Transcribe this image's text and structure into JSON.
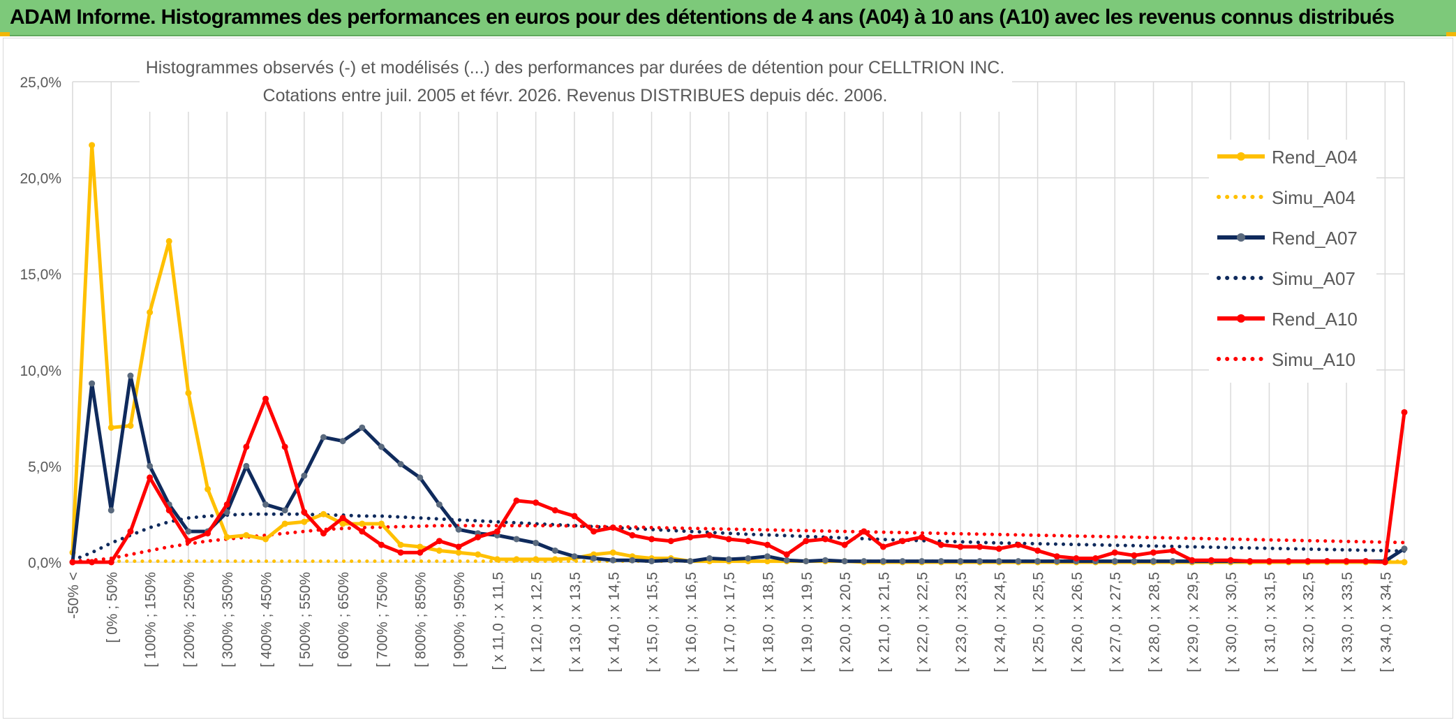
{
  "header": {
    "title": "ADAM Informe. Histogrammes des performances en euros pour des détentions de 4 ans (A04) à 10 ans (A10) avec les revenus connus distribués"
  },
  "colors": {
    "header_bg": "#7dc97a",
    "a04": "#ffc000",
    "a07": "#0f2a5c",
    "a07_marker": "#5a6a7e",
    "a10": "#ff0000",
    "grid": "#d9d9d9",
    "axis_text": "#595959"
  },
  "chart_data": {
    "type": "line",
    "title_line1": "Histogrammes observés (-) et modélisés (...) des performances par durées de détention pour CELLTRION INC.",
    "title_line2": "Cotations entre juil. 2005 et févr. 2026. Revenus DISTRIBUES depuis déc. 2006.",
    "ylim": [
      0,
      25
    ],
    "yticks": [
      "0,0%",
      "5,0%",
      "10,0%",
      "15,0%",
      "20,0%",
      "25,0%"
    ],
    "ytick_values": [
      0,
      5,
      10,
      15,
      20,
      25
    ],
    "n_categories": 70,
    "xtick_labels": [
      "-50% <",
      "[ 0% ; 50%",
      "[ 100% ; 150%",
      "[ 200% ; 250%",
      "[ 300% ; 350%",
      "[ 400% ; 450%",
      "[ 500% ; 550%",
      "[ 600% ; 650%",
      "[ 700% ; 750%",
      "[ 800% ; 850%",
      "[ 900% ; 950%",
      "[ x 11,0 ; x 11,5",
      "[ x 12,0 ; x 12,5",
      "[ x 13,0 ; x 13,5",
      "[ x 14,0 ; x 14,5",
      "[ x 15,0 ; x 15,5",
      "[ x 16,0 ; x 16,5",
      "[ x 17,0 ; x 17,5",
      "[ x 18,0 ; x 18,5",
      "[ x 19,0 ; x 19,5",
      "[ x 20,0 ; x 20,5",
      "[ x 21,0 ; x 21,5",
      "[ x 22,0 ; x 22,5",
      "[ x 23,0 ; x 23,5",
      "[ x 24,0 ; x 24,5",
      "[ x 25,0 ; x 25,5",
      "[ x 26,0 ; x 26,5",
      "[ x 27,0 ; x 27,5",
      "[ x 28,0 ; x 28,5",
      "[ x 29,0 ; x 29,5",
      "[ x 30,0 ; x 30,5",
      "[ x 31,0 ; x 31,5",
      "[ x 32,0 ; x 32,5",
      "[ x 33,0 ; x 33,5",
      "[ x 34,0 ; x 34,5"
    ],
    "xtick_every": 2,
    "series": [
      {
        "name": "Rend_A04",
        "style": "solid",
        "color": "#ffc000",
        "values": [
          0.5,
          21.7,
          7.0,
          7.1,
          13.0,
          16.7,
          8.8,
          3.8,
          1.3,
          1.4,
          1.2,
          2.0,
          2.1,
          2.5,
          2.0,
          2.0,
          2.0,
          0.9,
          0.8,
          0.6,
          0.5,
          0.4,
          0.15,
          0.15,
          0.15,
          0.15,
          0.2,
          0.4,
          0.5,
          0.3,
          0.2,
          0.2,
          0.05,
          0.05,
          0.05,
          0.05,
          0.05,
          0.05,
          0.05,
          0.05,
          0.05,
          0,
          0,
          0,
          0,
          0,
          0,
          0,
          0,
          0,
          0,
          0,
          0,
          0,
          0,
          0,
          0,
          0,
          0,
          0,
          0,
          0,
          0,
          0,
          0,
          0,
          0,
          0,
          0,
          0
        ]
      },
      {
        "name": "Simu_A04",
        "style": "dotted",
        "color": "#ffc000",
        "values": [
          0.05,
          0.05,
          0.05,
          0.05,
          0.05,
          0.05,
          0.05,
          0.05,
          0.05,
          0.05,
          0.05,
          0.05,
          0.05,
          0.05,
          0.05,
          0.05,
          0.05,
          0.05,
          0.05,
          0.05,
          0.05,
          0.05,
          0.05,
          0.05,
          0.05,
          0.05,
          0.05,
          0.05,
          0.05,
          0.05,
          0.05,
          0.05,
          0.05,
          0.05,
          0.05,
          0.05,
          0.05,
          0.05,
          0.05,
          0.05,
          0.05,
          0.05,
          0.05,
          0.05,
          0.05,
          0.05,
          0.05,
          0.05,
          0.05,
          0.05,
          0.05,
          0.05,
          0.05,
          0.05,
          0.05,
          0.05,
          0.05,
          0.05,
          0.05,
          0.05,
          0.05,
          0.05,
          0.05,
          0.05,
          0.05,
          0.05,
          0.05,
          0.05,
          0.05,
          0.05
        ]
      },
      {
        "name": "Rend_A07",
        "style": "solid",
        "color": "#0f2a5c",
        "values": [
          0,
          9.3,
          2.7,
          9.7,
          5.0,
          3.0,
          1.6,
          1.6,
          2.6,
          5.0,
          3.0,
          2.7,
          4.5,
          6.5,
          6.3,
          7.0,
          6.0,
          5.1,
          4.4,
          3.0,
          1.7,
          1.5,
          1.4,
          1.2,
          1.0,
          0.6,
          0.3,
          0.2,
          0.1,
          0.1,
          0.05,
          0.1,
          0.05,
          0.2,
          0.15,
          0.2,
          0.3,
          0.1,
          0.05,
          0.1,
          0.05,
          0.05,
          0.05,
          0.05,
          0.05,
          0.05,
          0.05,
          0.05,
          0.05,
          0.05,
          0.05,
          0.05,
          0.05,
          0.05,
          0.05,
          0.05,
          0.05,
          0.05,
          0.05,
          0.05,
          0.05,
          0.05,
          0.05,
          0.05,
          0.05,
          0.05,
          0.05,
          0.05,
          0.05,
          0.7
        ]
      },
      {
        "name": "Simu_A07",
        "style": "dotted",
        "color": "#0f2a5c",
        "values": [
          0.1,
          0.5,
          1.0,
          1.4,
          1.8,
          2.1,
          2.3,
          2.4,
          2.45,
          2.5,
          2.5,
          2.5,
          2.5,
          2.45,
          2.45,
          2.4,
          2.4,
          2.35,
          2.3,
          2.25,
          2.2,
          2.15,
          2.1,
          2.05,
          2.0,
          1.95,
          1.9,
          1.85,
          1.8,
          1.75,
          1.7,
          1.65,
          1.6,
          1.55,
          1.5,
          1.45,
          1.42,
          1.38,
          1.34,
          1.3,
          1.26,
          1.22,
          1.18,
          1.15,
          1.12,
          1.09,
          1.06,
          1.03,
          1.0,
          0.98,
          0.96,
          0.94,
          0.92,
          0.9,
          0.88,
          0.86,
          0.84,
          0.82,
          0.8,
          0.78,
          0.76,
          0.74,
          0.72,
          0.7,
          0.68,
          0.66,
          0.64,
          0.62,
          0.6,
          0.58
        ]
      },
      {
        "name": "Rend_A10",
        "style": "solid",
        "color": "#ff0000",
        "values": [
          0,
          0,
          0,
          1.6,
          4.4,
          2.7,
          1.1,
          1.5,
          3.0,
          6.0,
          8.5,
          6.0,
          2.6,
          1.5,
          2.3,
          1.6,
          0.9,
          0.5,
          0.5,
          1.1,
          0.8,
          1.3,
          1.6,
          3.2,
          3.1,
          2.7,
          2.4,
          1.6,
          1.8,
          1.4,
          1.2,
          1.1,
          1.3,
          1.4,
          1.2,
          1.1,
          0.9,
          0.4,
          1.1,
          1.2,
          0.9,
          1.6,
          0.8,
          1.1,
          1.3,
          0.9,
          0.8,
          0.8,
          0.7,
          0.9,
          0.6,
          0.3,
          0.2,
          0.2,
          0.5,
          0.35,
          0.5,
          0.6,
          0.1,
          0.1,
          0.1,
          0.05,
          0.05,
          0.05,
          0.05,
          0.05,
          0.05,
          0.05,
          0,
          7.8
        ]
      },
      {
        "name": "Simu_A10",
        "style": "dotted",
        "color": "#ff0000",
        "values": [
          0.05,
          0.1,
          0.2,
          0.4,
          0.6,
          0.8,
          0.95,
          1.1,
          1.2,
          1.3,
          1.4,
          1.5,
          1.6,
          1.7,
          1.75,
          1.8,
          1.82,
          1.85,
          1.87,
          1.9,
          1.9,
          1.9,
          1.9,
          1.9,
          1.9,
          1.9,
          1.88,
          1.86,
          1.85,
          1.83,
          1.8,
          1.78,
          1.76,
          1.74,
          1.72,
          1.7,
          1.68,
          1.66,
          1.64,
          1.62,
          1.6,
          1.58,
          1.56,
          1.54,
          1.52,
          1.5,
          1.48,
          1.46,
          1.44,
          1.42,
          1.4,
          1.38,
          1.36,
          1.34,
          1.32,
          1.3,
          1.28,
          1.26,
          1.24,
          1.22,
          1.2,
          1.18,
          1.16,
          1.14,
          1.12,
          1.1,
          1.08,
          1.06,
          1.04,
          1.02
        ]
      }
    ]
  }
}
